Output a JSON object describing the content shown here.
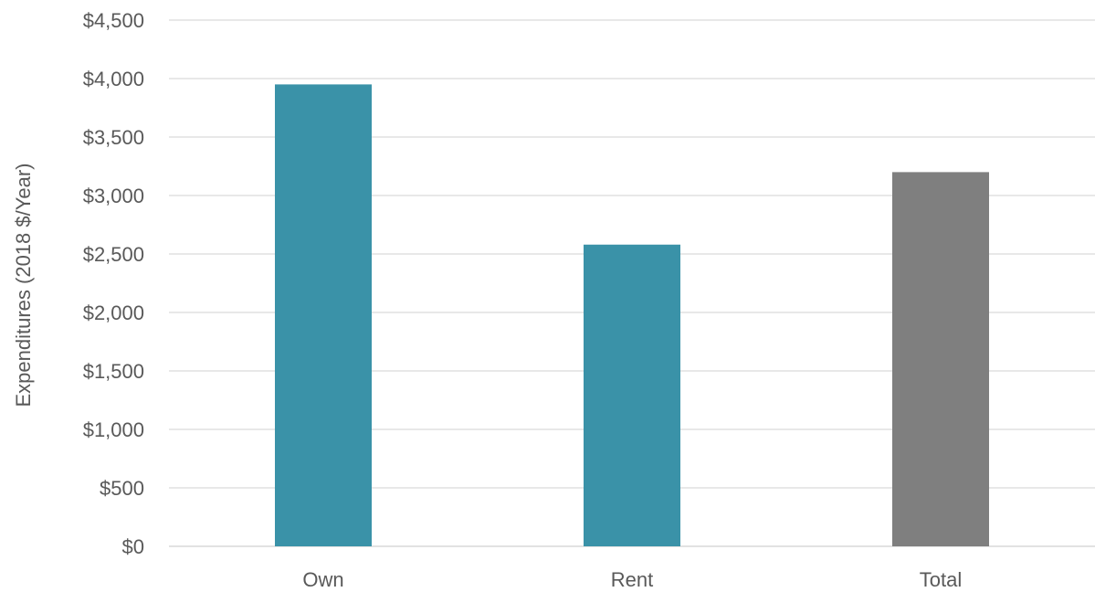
{
  "chart_data": {
    "type": "bar",
    "title": "",
    "xlabel": "",
    "ylabel": "Expenditures (2018 $/Year)",
    "categories": [
      "Own",
      "Rent",
      "Total"
    ],
    "values": [
      3950,
      2580,
      3200
    ],
    "bar_colors": [
      "#3a92a8",
      "#3a92a8",
      "#7f7f7f"
    ],
    "ylim": [
      0,
      4500
    ],
    "yticks": [
      0,
      500,
      1000,
      1500,
      2000,
      2500,
      3000,
      3500,
      4000,
      4500
    ],
    "ytick_labels": [
      "$0",
      "$500",
      "$1,000",
      "$1,500",
      "$2,000",
      "$2,500",
      "$3,000",
      "$3,500",
      "$4,000",
      "$4,500"
    ],
    "grid": true,
    "legend": "none"
  }
}
